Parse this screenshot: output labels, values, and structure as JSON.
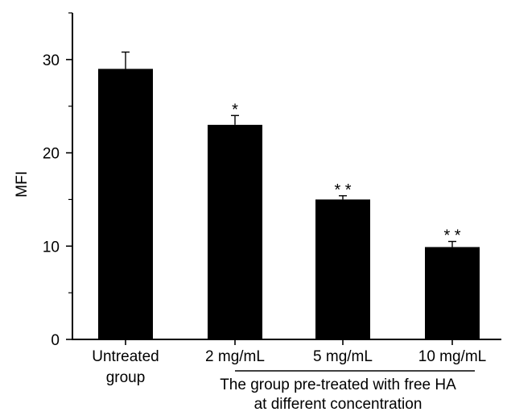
{
  "chart_data": {
    "type": "bar",
    "categories": [
      "Untreated\ngroup",
      "2 mg/mL",
      "5 mg/mL",
      "10 mg/mL"
    ],
    "values": [
      29.0,
      23.0,
      15.0,
      9.9
    ],
    "errors": [
      1.8,
      1.0,
      0.4,
      0.6
    ],
    "significance": [
      "",
      "*",
      "* *",
      "* *"
    ],
    "ylabel": "MFI",
    "ylim": [
      0,
      35
    ],
    "yticks": [
      0,
      10,
      20,
      30
    ],
    "group_label": [
      "The group pre-treated with free HA",
      "at different concentration"
    ],
    "bar_color": "#000000",
    "grid": false
  }
}
